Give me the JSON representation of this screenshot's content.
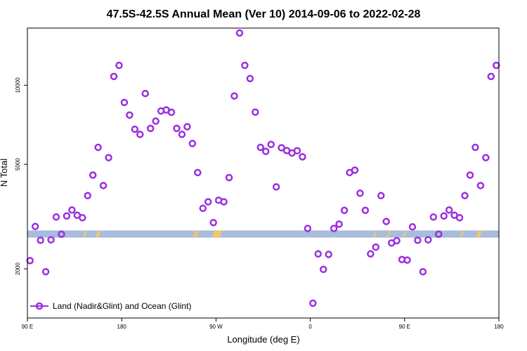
{
  "chart_data": {
    "type": "scatter",
    "title": "47.5S-42.5S Annual Mean (Ver 10)   2014-09-06 to 2022-02-28",
    "xlabel": "Longitude (deg E)",
    "ylabel": "N Total",
    "x_ticks": [
      {
        "value": 90,
        "label": "90 E"
      },
      {
        "value": 180,
        "label": "180"
      },
      {
        "value": 270,
        "label": "90 W"
      },
      {
        "value": 360,
        "label": "0"
      },
      {
        "value": 450,
        "label": "90 E"
      },
      {
        "value": 540,
        "label": "180"
      }
    ],
    "y_ticks": [
      {
        "value": 2000,
        "label": "2000"
      },
      {
        "value": 5000,
        "label": "5000"
      },
      {
        "value": 10000,
        "label": "10000"
      }
    ],
    "xlim": [
      90,
      540
    ],
    "y_scale": "log",
    "ylim": [
      1300,
      16500
    ],
    "band_color": "#a8bcdc",
    "band_range": [
      2630,
      2800
    ],
    "land_marker_color": "#f4c860",
    "series": [
      {
        "name": "Land (Nadir&Glint) and Ocean (Glint)",
        "color": "#9b2fe0",
        "x": [
          92.5,
          97.5,
          102.5,
          107.5,
          112.5,
          117.5,
          122.5,
          127.5,
          132.5,
          137.5,
          142.5,
          147.5,
          152.5,
          157.5,
          162.5,
          167.5,
          172.5,
          177.5,
          182.5,
          187.5,
          192.5,
          197.5,
          202.5,
          207.5,
          212.5,
          217.5,
          222.5,
          227.5,
          232.5,
          237.5,
          242.5,
          247.5,
          252.5,
          257.5,
          262.5,
          267.5,
          272.5,
          277.5,
          282.5,
          287.5,
          292.5,
          297.5,
          302.5,
          307.5,
          312.5,
          317.5,
          322.5,
          327.5,
          332.5,
          337.5,
          342.5,
          347.5,
          352.5,
          357.5,
          362.5,
          367.5,
          372.5,
          377.5,
          382.5,
          387.5,
          392.5,
          397.5,
          402.5,
          407.5,
          412.5,
          417.5,
          422.5,
          427.5,
          432.5,
          437.5,
          442.5,
          447.5,
          452.5,
          457.5,
          462.5,
          467.5,
          472.5,
          477.5,
          482.5,
          487.5,
          492.5,
          497.5,
          502.5,
          507.5,
          512.5,
          517.5,
          522.5,
          527.5,
          532.5,
          537.5
        ],
        "y": [
          2150,
          2900,
          2570,
          1950,
          2580,
          3150,
          2710,
          3180,
          3350,
          3200,
          3130,
          3800,
          4550,
          5800,
          4150,
          5300,
          10800,
          11900,
          8600,
          7700,
          6800,
          6500,
          9300,
          6850,
          7300,
          7980,
          8050,
          7890,
          6850,
          6500,
          6950,
          6000,
          4650,
          3400,
          3600,
          3000,
          3650,
          3600,
          4450,
          9100,
          15800,
          11900,
          10600,
          7900,
          5800,
          5600,
          5950,
          4100,
          5780,
          5640,
          5520,
          5630,
          5340,
          2850,
          1480,
          2280,
          1990,
          2270,
          2850,
          2960,
          3340,
          4650,
          4750,
          3880,
          3340,
          2280,
          2420,
          3800,
          3030,
          2510,
          2560,
          2170,
          2160,
          2890,
          2570,
          1950,
          2580,
          3150,
          2710,
          3180,
          3350,
          3200,
          3130,
          3800,
          4550,
          5800,
          4150,
          5300,
          10800,
          11900
        ]
      }
    ],
    "legend": {
      "position": "bottom-left"
    }
  }
}
